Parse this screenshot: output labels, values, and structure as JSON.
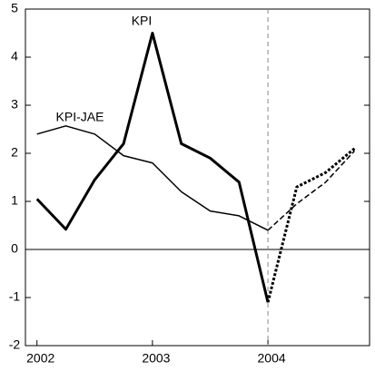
{
  "chart_data": {
    "type": "line",
    "annotations": [
      "KPI",
      "KPI-JAE"
    ],
    "x": [
      2002,
      2002.25,
      2002.5,
      2002.75,
      2003,
      2003.25,
      2003.5,
      2003.75,
      2004,
      2004.25,
      2004.5,
      2004.75
    ],
    "series": [
      {
        "name": "KPI",
        "color": "#000000",
        "values": [
          1.05,
          0.42,
          1.45,
          2.2,
          4.5,
          2.2,
          1.9,
          1.4,
          -1.1,
          1.3,
          1.6,
          2.1
        ]
      },
      {
        "name": "KPI-JAE",
        "color": "#000000",
        "values": [
          2.4,
          2.57,
          2.4,
          1.95,
          1.8,
          1.2,
          0.8,
          0.7,
          0.4,
          0.95,
          1.4,
          2.05
        ]
      }
    ],
    "forecast_start": 2004,
    "xlim": [
      2001.9,
      2004.88
    ],
    "xticks": [
      2002,
      2003,
      2004
    ],
    "ylim": [
      -2,
      5
    ],
    "yticks": [
      -2,
      -1,
      0,
      1,
      2,
      3,
      4,
      5
    ]
  }
}
